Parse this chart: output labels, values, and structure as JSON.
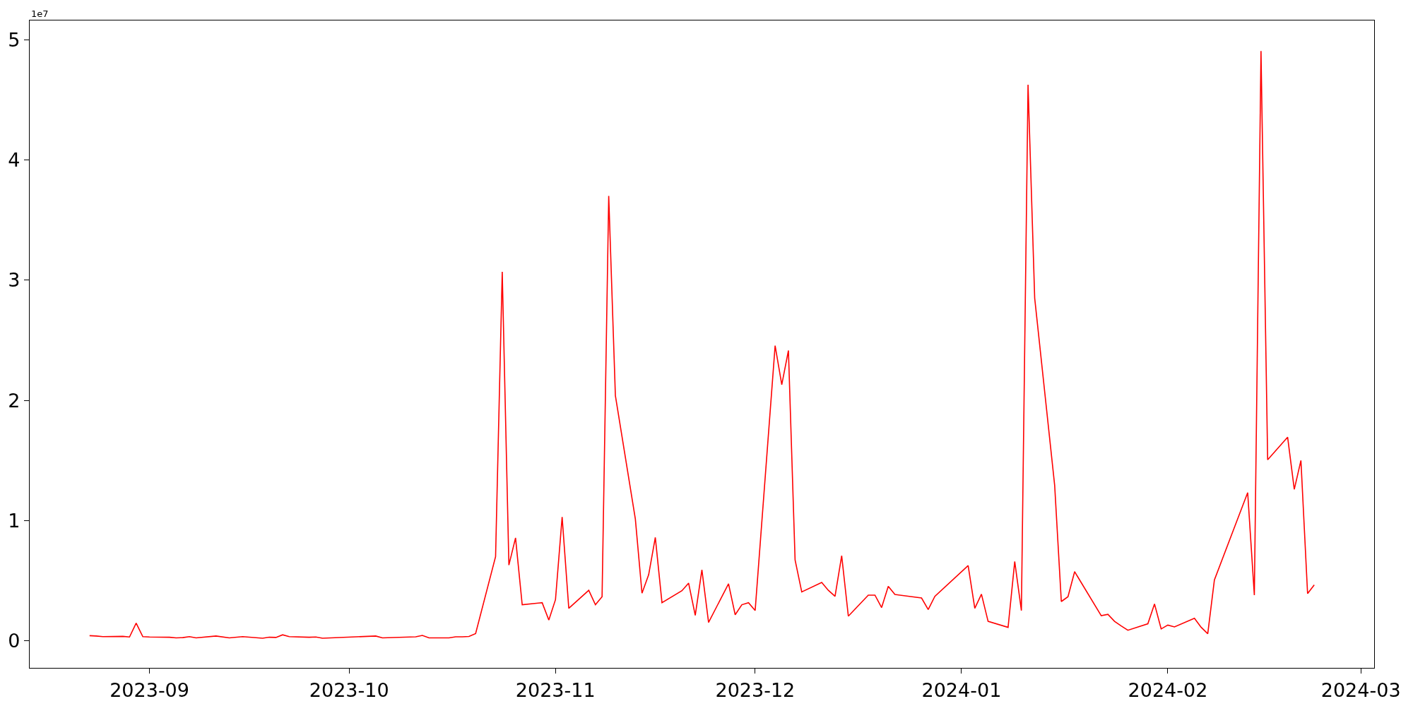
{
  "chart_data": {
    "type": "line",
    "x": [
      "2023-08-23",
      "2023-08-24",
      "2023-08-25",
      "2023-08-28",
      "2023-08-29",
      "2023-08-30",
      "2023-08-31",
      "2023-09-01",
      "2023-09-04",
      "2023-09-05",
      "2023-09-06",
      "2023-09-07",
      "2023-09-08",
      "2023-09-11",
      "2023-09-13",
      "2023-09-15",
      "2023-09-18",
      "2023-09-19",
      "2023-09-20",
      "2023-09-21",
      "2023-09-22",
      "2023-09-25",
      "2023-09-26",
      "2023-09-27",
      "2023-10-05",
      "2023-10-06",
      "2023-10-11",
      "2023-10-12",
      "2023-10-13",
      "2023-10-16",
      "2023-10-17",
      "2023-10-18",
      "2023-10-19",
      "2023-10-20",
      "2023-10-23",
      "2023-10-24",
      "2023-10-25",
      "2023-10-26",
      "2023-10-27",
      "2023-10-30",
      "2023-10-31",
      "2023-11-01",
      "2023-11-02",
      "2023-11-03",
      "2023-11-06",
      "2023-11-07",
      "2023-11-08",
      "2023-11-09",
      "2023-11-10",
      "2023-11-13",
      "2023-11-14",
      "2023-11-15",
      "2023-11-16",
      "2023-11-17",
      "2023-11-20",
      "2023-11-21",
      "2023-11-22",
      "2023-11-23",
      "2023-11-24",
      "2023-11-27",
      "2023-11-28",
      "2023-11-29",
      "2023-11-30",
      "2023-12-01",
      "2023-12-04",
      "2023-12-05",
      "2023-12-06",
      "2023-12-07",
      "2023-12-08",
      "2023-12-11",
      "2023-12-12",
      "2023-12-13",
      "2023-12-14",
      "2023-12-15",
      "2023-12-18",
      "2023-12-19",
      "2023-12-20",
      "2023-12-21",
      "2023-12-22",
      "2023-12-26",
      "2023-12-27",
      "2023-12-28",
      "2024-01-02",
      "2024-01-03",
      "2024-01-04",
      "2024-01-05",
      "2024-01-08",
      "2024-01-09",
      "2024-01-10",
      "2024-01-11",
      "2024-01-12",
      "2024-01-15",
      "2024-01-16",
      "2024-01-17",
      "2024-01-18",
      "2024-01-22",
      "2024-01-23",
      "2024-01-24",
      "2024-01-25",
      "2024-01-26",
      "2024-01-29",
      "2024-01-30",
      "2024-01-31",
      "2024-02-01",
      "2024-02-02",
      "2024-02-05",
      "2024-02-06",
      "2024-02-07",
      "2024-02-08",
      "2024-02-13",
      "2024-02-14",
      "2024-02-15",
      "2024-02-16",
      "2024-02-19",
      "2024-02-20",
      "2024-02-21",
      "2024-02-22",
      "2024-02-23"
    ],
    "series": [
      {
        "color": "#ff0000",
        "values": [
          0.043,
          0.04,
          0.035,
          0.037,
          0.032,
          0.147,
          0.035,
          0.032,
          0.03,
          0.025,
          0.027,
          0.035,
          0.025,
          0.04,
          0.025,
          0.035,
          0.022,
          0.03,
          0.028,
          0.05,
          0.035,
          0.03,
          0.032,
          0.022,
          0.04,
          0.025,
          0.033,
          0.045,
          0.025,
          0.025,
          0.033,
          0.033,
          0.036,
          0.06,
          0.7,
          3.07,
          0.63,
          0.856,
          0.3,
          0.317,
          0.173,
          0.342,
          1.03,
          0.27,
          0.42,
          0.3,
          0.367,
          3.7,
          2.04,
          1.013,
          0.396,
          0.55,
          0.86,
          0.317,
          0.417,
          0.48,
          0.212,
          0.59,
          0.153,
          0.475,
          0.217,
          0.3,
          0.317,
          0.252,
          2.455,
          2.13,
          2.415,
          0.672,
          0.407,
          0.485,
          0.42,
          0.37,
          0.708,
          0.205,
          0.38,
          0.38,
          0.277,
          0.453,
          0.385,
          0.356,
          0.26,
          0.37,
          0.626,
          0.27,
          0.388,
          0.162,
          0.112,
          0.66,
          0.252,
          4.626,
          2.85,
          1.294,
          0.327,
          0.367,
          0.575,
          0.209,
          0.22,
          0.162,
          0.124,
          0.088,
          0.142,
          0.307,
          0.099,
          0.131,
          0.116,
          0.188,
          0.113,
          0.059,
          0.507,
          1.233,
          0.38,
          4.906,
          1.506,
          1.694,
          1.26,
          1.5,
          0.393,
          0.465
        ]
      }
    ],
    "xlim": [
      "2023-08-14",
      "2024-03-03"
    ],
    "xticks": [
      {
        "value": "2023-09-01",
        "label": "2023-09"
      },
      {
        "value": "2023-10-01",
        "label": "2023-10"
      },
      {
        "value": "2023-11-01",
        "label": "2023-11"
      },
      {
        "value": "2023-12-01",
        "label": "2023-12"
      },
      {
        "value": "2024-01-01",
        "label": "2024-01"
      },
      {
        "value": "2024-02-01",
        "label": "2024-02"
      },
      {
        "value": "2024-03-01",
        "label": "2024-03"
      }
    ],
    "ylim": [
      -0.225,
      5.16
    ],
    "yticks": [
      0,
      1,
      2,
      3,
      4,
      5
    ],
    "annotations": [
      "1e7"
    ],
    "marker": "none",
    "line_style": "solid"
  }
}
